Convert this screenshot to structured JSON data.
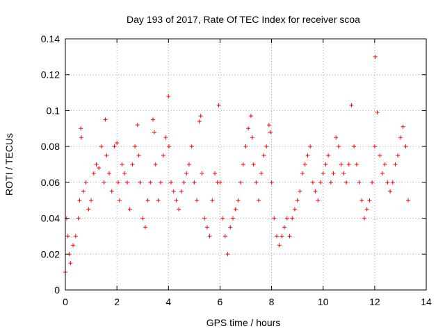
{
  "chart_data": {
    "type": "scatter",
    "title": "Day 193 of 2017, Rate Of TEC Index for receiver scoa",
    "xlabel": "GPS time / hours",
    "ylabel": "ROTI / TECUs",
    "xlim": [
      0,
      14
    ],
    "ylim": [
      0,
      0.14
    ],
    "xticks": [
      0,
      2,
      4,
      6,
      8,
      10,
      12,
      14
    ],
    "xtick_labels": [
      "0",
      "2",
      "4",
      "6",
      "8",
      "10",
      "12",
      "14"
    ],
    "yticks": [
      0,
      0.02,
      0.04,
      0.06,
      0.08,
      0.1,
      0.12,
      0.14
    ],
    "ytick_labels": [
      "0",
      "0.02",
      "0.04",
      "0.06",
      "0.08",
      "0.1",
      "0.12",
      "0.14"
    ],
    "grid": true,
    "marker": "plus",
    "color": "#ff0000",
    "series": [
      {
        "x": [
          0.0,
          0.05,
          0.1,
          0.15,
          0.2,
          0.3,
          0.4,
          0.5,
          0.55,
          0.6,
          0.62,
          0.7,
          0.8,
          0.9,
          1.0,
          1.1,
          1.2,
          1.3,
          1.4,
          1.5,
          1.55,
          1.6,
          1.7,
          1.8,
          1.9,
          2.0,
          2.05,
          2.1,
          2.2,
          2.3,
          2.4,
          2.5,
          2.6,
          2.7,
          2.8,
          2.85,
          2.9,
          3.0,
          3.1,
          3.2,
          3.3,
          3.4,
          3.45,
          3.5,
          3.6,
          3.7,
          3.8,
          3.9,
          4.0,
          4.02,
          4.1,
          4.2,
          4.3,
          4.4,
          4.5,
          4.6,
          4.7,
          4.8,
          4.9,
          5.0,
          5.1,
          5.2,
          5.25,
          5.3,
          5.4,
          5.5,
          5.6,
          5.7,
          5.8,
          5.9,
          5.95,
          6.0,
          6.1,
          6.2,
          6.3,
          6.4,
          6.5,
          6.6,
          6.7,
          6.8,
          6.9,
          7.0,
          7.1,
          7.2,
          7.25,
          7.3,
          7.4,
          7.5,
          7.6,
          7.7,
          7.8,
          7.9,
          7.95,
          8.0,
          8.1,
          8.2,
          8.3,
          8.4,
          8.5,
          8.6,
          8.7,
          8.8,
          8.9,
          9.0,
          9.1,
          9.2,
          9.3,
          9.4,
          9.5,
          9.6,
          9.7,
          9.8,
          9.9,
          10.0,
          10.1,
          10.2,
          10.3,
          10.4,
          10.5,
          10.6,
          10.7,
          10.8,
          10.9,
          11.0,
          11.1,
          11.2,
          11.3,
          11.4,
          11.5,
          11.6,
          11.7,
          11.8,
          11.9,
          12.0,
          12.02,
          12.1,
          12.2,
          12.3,
          12.4,
          12.5,
          12.6,
          12.7,
          12.8,
          12.9,
          13.0,
          13.1,
          13.2,
          13.3
        ],
        "y": [
          0.01,
          0.04,
          0.03,
          0.02,
          0.015,
          0.025,
          0.03,
          0.04,
          0.05,
          0.09,
          0.085,
          0.055,
          0.06,
          0.045,
          0.05,
          0.065,
          0.07,
          0.068,
          0.08,
          0.06,
          0.095,
          0.075,
          0.065,
          0.055,
          0.08,
          0.082,
          0.06,
          0.05,
          0.07,
          0.065,
          0.06,
          0.045,
          0.07,
          0.08,
          0.092,
          0.075,
          0.06,
          0.04,
          0.035,
          0.05,
          0.06,
          0.095,
          0.088,
          0.07,
          0.05,
          0.06,
          0.075,
          0.085,
          0.108,
          0.08,
          0.06,
          0.055,
          0.05,
          0.045,
          0.055,
          0.06,
          0.065,
          0.07,
          0.08,
          0.06,
          0.05,
          0.094,
          0.097,
          0.065,
          0.04,
          0.035,
          0.03,
          0.05,
          0.065,
          0.06,
          0.103,
          0.06,
          0.04,
          0.03,
          0.02,
          0.035,
          0.04,
          0.045,
          0.05,
          0.06,
          0.07,
          0.08,
          0.09,
          0.097,
          0.085,
          0.07,
          0.06,
          0.05,
          0.065,
          0.075,
          0.08,
          0.092,
          0.088,
          0.06,
          0.04,
          0.03,
          0.025,
          0.03,
          0.035,
          0.04,
          0.03,
          0.04,
          0.045,
          0.05,
          0.055,
          0.065,
          0.07,
          0.075,
          0.08,
          0.06,
          0.055,
          0.05,
          0.06,
          0.065,
          0.07,
          0.075,
          0.06,
          0.065,
          0.085,
          0.08,
          0.07,
          0.065,
          0.06,
          0.07,
          0.103,
          0.08,
          0.07,
          0.06,
          0.05,
          0.04,
          0.045,
          0.05,
          0.06,
          0.08,
          0.13,
          0.099,
          0.075,
          0.065,
          0.07,
          0.06,
          0.055,
          0.06,
          0.07,
          0.075,
          0.085,
          0.091,
          0.08,
          0.05
        ]
      }
    ]
  }
}
